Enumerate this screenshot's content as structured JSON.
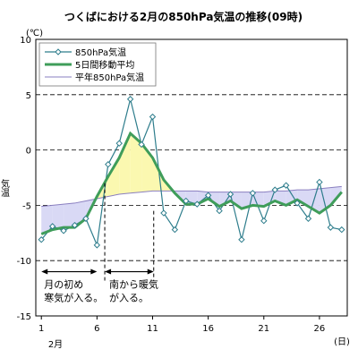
{
  "chart_data": {
    "type": "line",
    "title": "つくばにおける2月の850hPa気温の推移(09時)",
    "ylabel": "気温",
    "yunit": "(℃)",
    "xunit": "(日)",
    "xmonth": "2月",
    "ylim": [
      -15,
      10
    ],
    "xlim": [
      0.5,
      28.5
    ],
    "yticks": [
      10,
      5,
      0,
      -5,
      -10,
      -15
    ],
    "xticks": [
      1,
      6,
      11,
      16,
      21,
      26
    ],
    "grid": true,
    "legend_position": "top-left",
    "x": [
      1,
      2,
      3,
      4,
      5,
      6,
      7,
      8,
      9,
      10,
      11,
      12,
      13,
      14,
      15,
      16,
      17,
      18,
      19,
      20,
      21,
      22,
      23,
      24,
      25,
      26,
      27,
      28
    ],
    "series": [
      {
        "name": "850hPa気温",
        "color": "#2e7d8c",
        "values": [
          -8.1,
          -6.9,
          -7.3,
          -6.8,
          -6.2,
          -8.6,
          -1.3,
          0.6,
          4.6,
          0.5,
          3.0,
          -5.7,
          -7.2,
          -4.6,
          -4.9,
          -4.1,
          -5.5,
          -4.0,
          -8.1,
          -3.9,
          -6.4,
          -3.6,
          -3.2,
          -4.8,
          -6.2,
          -2.9,
          -7.0,
          -7.2
        ]
      },
      {
        "name": "5日間移動平均",
        "color": "#3f9d5a",
        "values": [
          -7.6,
          -7.2,
          -7.0,
          -7.0,
          -6.2,
          -4.2,
          -2.4,
          -0.7,
          1.5,
          0.6,
          -0.7,
          -2.7,
          -3.9,
          -4.9,
          -4.9,
          -4.4,
          -5.1,
          -4.6,
          -5.3,
          -5.0,
          -5.1,
          -4.6,
          -5.0,
          -4.5,
          -5.1,
          -5.7,
          -5.0,
          -3.8
        ]
      },
      {
        "name": "平年850hPa気温",
        "color": "#8a7fc0",
        "values": [
          -5.1,
          -5.0,
          -4.9,
          -4.8,
          -4.6,
          -4.4,
          -4.2,
          -4.0,
          -3.9,
          -3.8,
          -3.7,
          -3.7,
          -3.7,
          -3.7,
          -3.7,
          -3.8,
          -3.8,
          -3.8,
          -3.8,
          -3.8,
          -3.8,
          -3.7,
          -3.7,
          -3.6,
          -3.6,
          -3.5,
          -3.4,
          -3.3
        ]
      }
    ],
    "annotations": [
      {
        "text": [
          "月の初め",
          "寒気が入る。"
        ],
        "from": 1,
        "to": 6
      },
      {
        "text": [
          "南から暖気",
          "が入る。"
        ],
        "from": 6.7,
        "to": 11.1
      }
    ]
  }
}
